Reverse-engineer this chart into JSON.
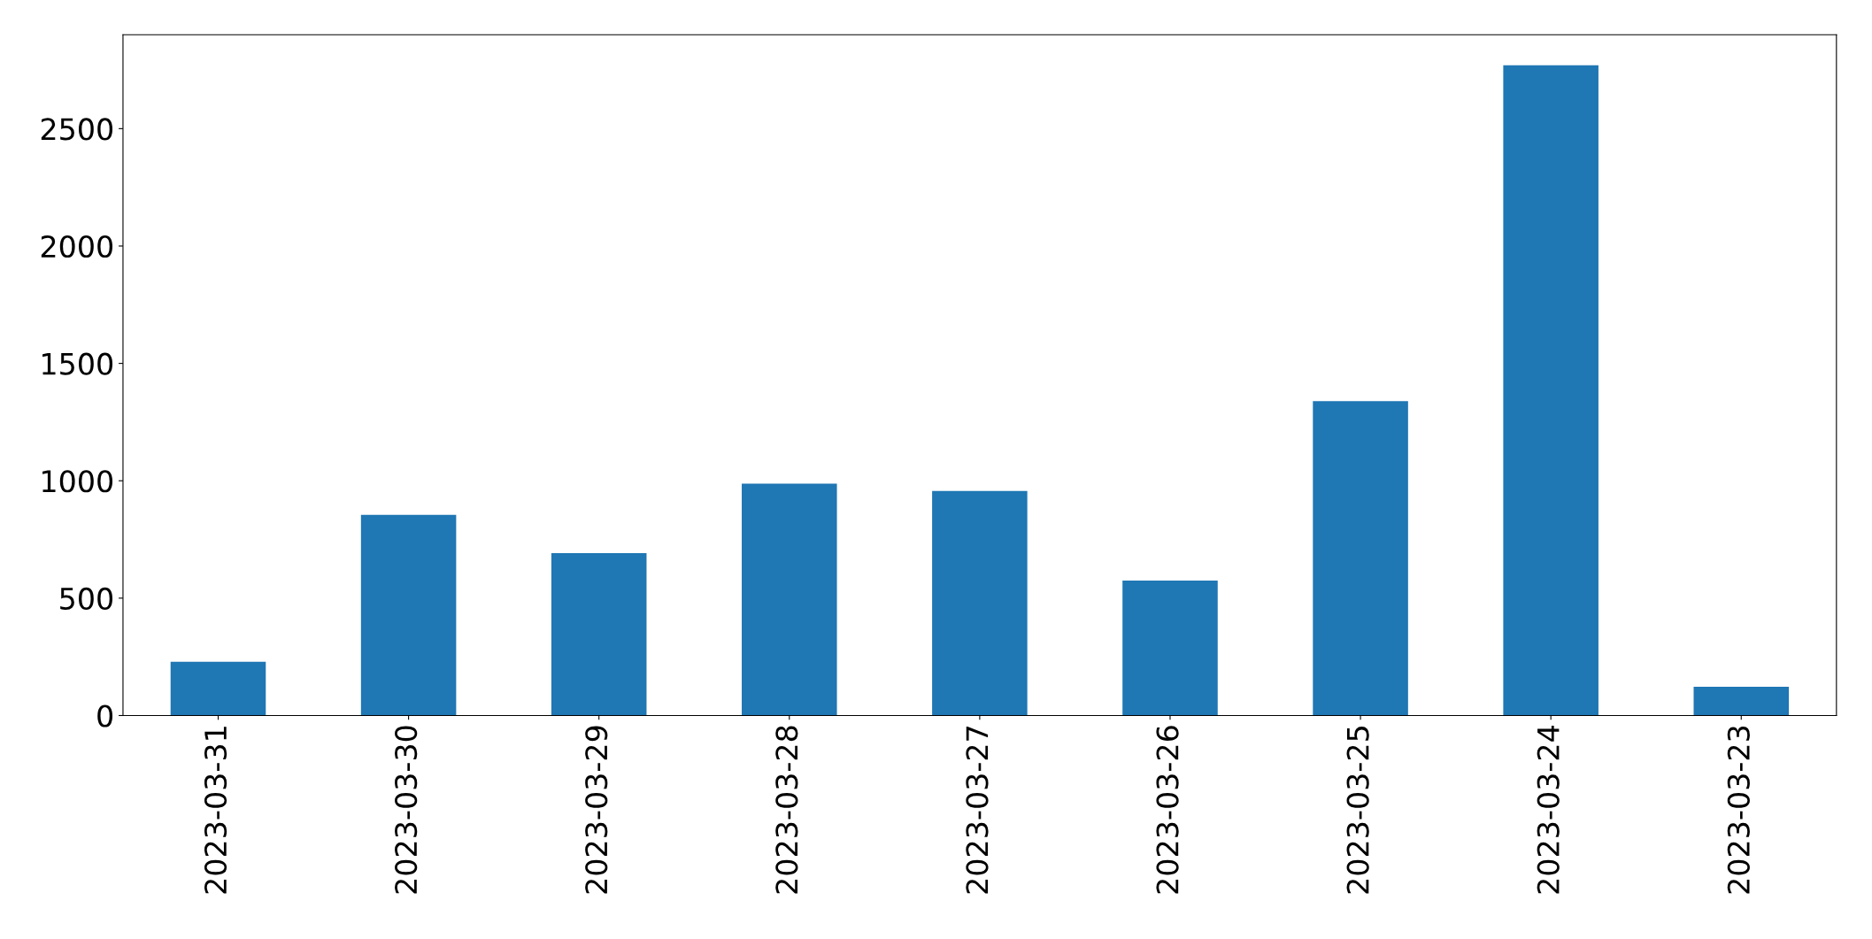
{
  "chart_data": {
    "type": "bar",
    "categories": [
      "2023-03-31",
      "2023-03-30",
      "2023-03-29",
      "2023-03-28",
      "2023-03-27",
      "2023-03-26",
      "2023-03-25",
      "2023-03-24",
      "2023-03-23"
    ],
    "values": [
      229,
      855,
      692,
      988,
      957,
      575,
      1339,
      2770,
      122
    ],
    "color": "#1f77b4",
    "ylim": [
      0,
      2900
    ],
    "yticks": [
      0,
      500,
      1000,
      1500,
      2000,
      2500
    ],
    "grid": false,
    "legend": false
  }
}
